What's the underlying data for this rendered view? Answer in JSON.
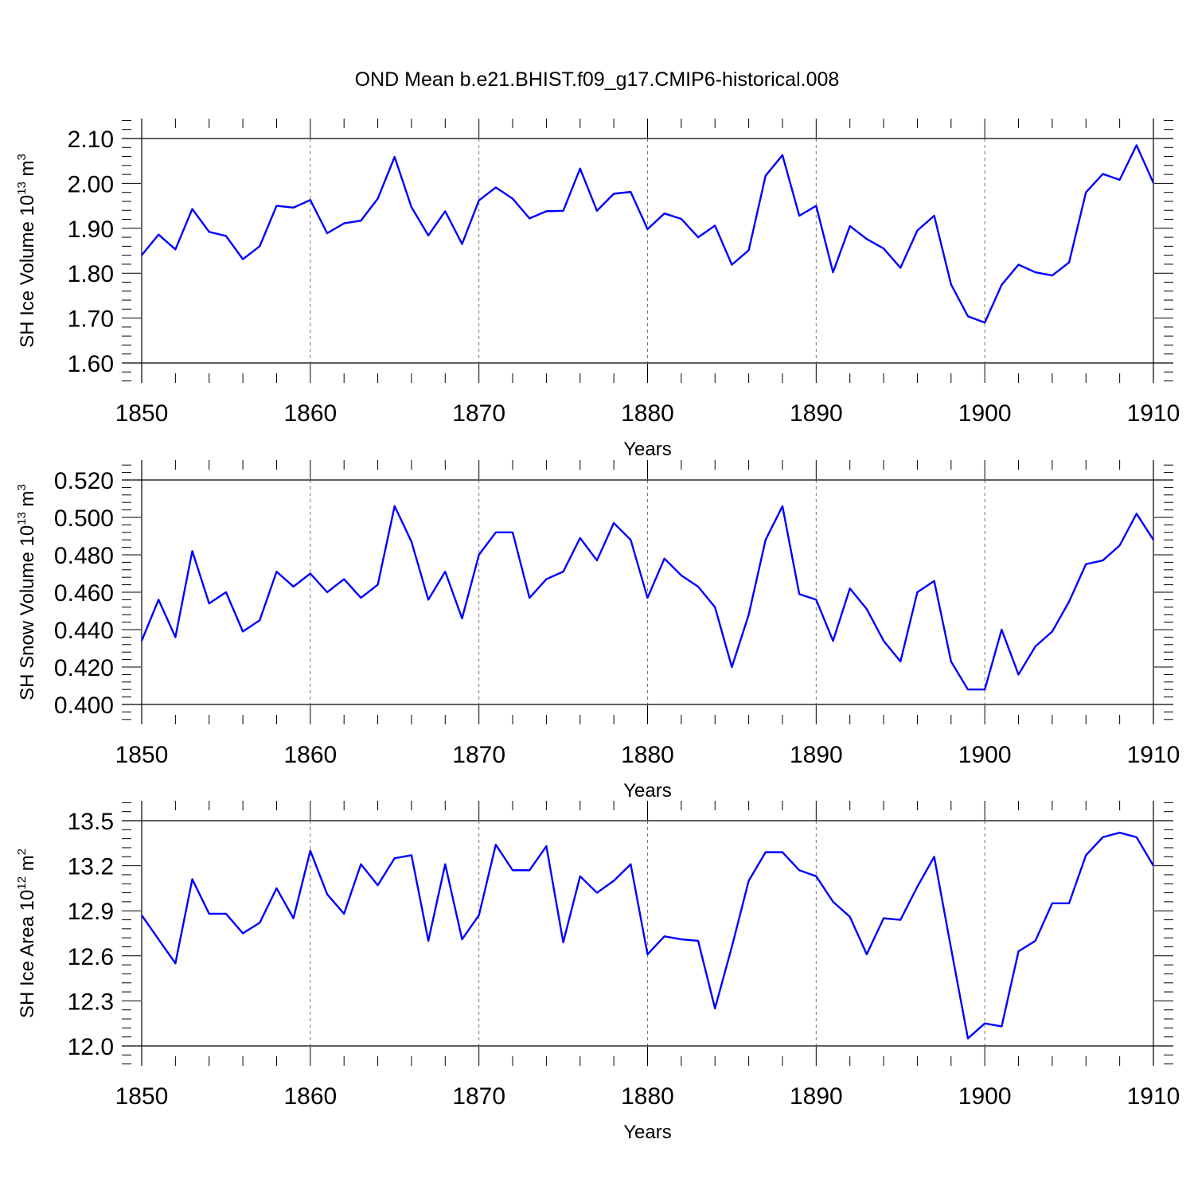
{
  "figure": {
    "title": "OND Mean b.e21.BHIST.f09_g17.CMIP6-historical.008",
    "line_color": "#0000ff"
  },
  "chart_data": [
    {
      "type": "line",
      "xlabel": "Years",
      "ylabel": "SH Ice Volume 10",
      "ylabel_exp": "13",
      "ylabel_unit": " m",
      "ylabel_unit_exp": "3",
      "xlim": [
        1850,
        1910
      ],
      "ylim": [
        1.6,
        2.1
      ],
      "x_ticks": [
        "1850",
        "1860",
        "1870",
        "1880",
        "1890",
        "1900",
        "1910"
      ],
      "y_ticks": [
        "1.60",
        "1.70",
        "1.80",
        "1.90",
        "2.00",
        "2.10"
      ],
      "grid": "vertical dashed at major x ticks",
      "x_start": 1850,
      "values": [
        1.84,
        1.886,
        1.853,
        1.943,
        1.892,
        1.883,
        1.831,
        1.86,
        1.95,
        1.946,
        1.963,
        1.889,
        1.911,
        1.917,
        1.966,
        2.059,
        1.947,
        1.884,
        1.938,
        1.865,
        1.962,
        1.991,
        1.966,
        1.922,
        1.938,
        1.939,
        2.033,
        1.939,
        1.977,
        1.981,
        1.898,
        1.933,
        1.921,
        1.88,
        1.906,
        1.819,
        1.851,
        2.017,
        2.063,
        1.928,
        1.95,
        1.802,
        1.905,
        1.876,
        1.855,
        1.812,
        1.895,
        1.928,
        1.775,
        1.704,
        1.69,
        1.774,
        1.819,
        1.802,
        1.795,
        1.824,
        1.98,
        2.021,
        2.008,
        2.085,
        2.001
      ]
    },
    {
      "type": "line",
      "xlabel": "Years",
      "ylabel": "SH Snow Volume 10",
      "ylabel_exp": "13",
      "ylabel_unit": " m",
      "ylabel_unit_exp": "3",
      "xlim": [
        1850,
        1910
      ],
      "ylim": [
        0.4,
        0.52
      ],
      "x_ticks": [
        "1850",
        "1860",
        "1870",
        "1880",
        "1890",
        "1900",
        "1910"
      ],
      "y_ticks": [
        "0.400",
        "0.420",
        "0.440",
        "0.460",
        "0.480",
        "0.500",
        "0.520"
      ],
      "grid": "vertical dashed at major x ticks",
      "x_start": 1850,
      "values": [
        0.434,
        0.456,
        0.436,
        0.482,
        0.454,
        0.46,
        0.439,
        0.445,
        0.471,
        0.463,
        0.47,
        0.46,
        0.467,
        0.457,
        0.464,
        0.506,
        0.487,
        0.456,
        0.471,
        0.446,
        0.48,
        0.492,
        0.492,
        0.457,
        0.467,
        0.471,
        0.489,
        0.477,
        0.497,
        0.488,
        0.457,
        0.478,
        0.469,
        0.463,
        0.452,
        0.42,
        0.448,
        0.488,
        0.506,
        0.459,
        0.456,
        0.434,
        0.462,
        0.451,
        0.434,
        0.423,
        0.46,
        0.466,
        0.423,
        0.408,
        0.408,
        0.44,
        0.416,
        0.431,
        0.439,
        0.455,
        0.475,
        0.477,
        0.485,
        0.502,
        0.488
      ]
    },
    {
      "type": "line",
      "xlabel": "Years",
      "ylabel": "SH Ice Area 10",
      "ylabel_exp": "12",
      "ylabel_unit": " m",
      "ylabel_unit_exp": "2",
      "xlim": [
        1850,
        1910
      ],
      "ylim": [
        12.0,
        13.5
      ],
      "x_ticks": [
        "1850",
        "1860",
        "1870",
        "1880",
        "1890",
        "1900",
        "1910"
      ],
      "y_ticks": [
        "12.0",
        "12.3",
        "12.6",
        "12.9",
        "13.2",
        "13.5"
      ],
      "grid": "vertical dashed at major x ticks",
      "x_start": 1850,
      "values": [
        12.87,
        12.71,
        12.55,
        13.11,
        12.88,
        12.88,
        12.75,
        12.82,
        13.05,
        12.85,
        13.3,
        13.01,
        12.88,
        13.21,
        13.07,
        13.25,
        13.27,
        12.7,
        13.21,
        12.71,
        12.87,
        13.34,
        13.17,
        13.17,
        13.33,
        12.69,
        13.13,
        13.02,
        13.1,
        13.21,
        12.61,
        12.73,
        12.71,
        12.7,
        12.25,
        12.66,
        13.1,
        13.29,
        13.29,
        13.17,
        13.13,
        12.96,
        12.86,
        12.61,
        12.85,
        12.84,
        13.06,
        13.26,
        12.65,
        12.05,
        12.15,
        12.13,
        12.63,
        12.7,
        12.95,
        12.95,
        13.27,
        13.39,
        13.42,
        13.39,
        13.2
      ]
    }
  ]
}
